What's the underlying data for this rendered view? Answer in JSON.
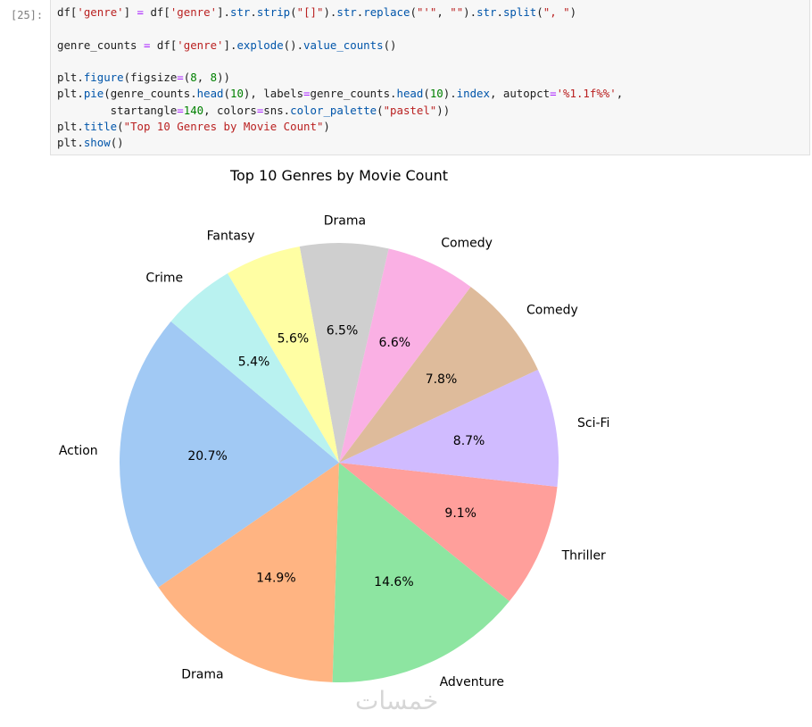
{
  "cell": {
    "prompt": "[25]:",
    "code_lines": [
      [
        [
          "df[",
          "n"
        ],
        [
          "'genre'",
          "s"
        ],
        [
          "] ",
          "n"
        ],
        [
          "=",
          "o"
        ],
        [
          " df[",
          "n"
        ],
        [
          "'genre'",
          "s"
        ],
        [
          "].",
          "n"
        ],
        [
          "str",
          "f"
        ],
        [
          ".",
          "n"
        ],
        [
          "strip",
          "f"
        ],
        [
          "(",
          "n"
        ],
        [
          "\"[]\"",
          "s"
        ],
        [
          ").",
          "n"
        ],
        [
          "str",
          "f"
        ],
        [
          ".",
          "n"
        ],
        [
          "replace",
          "f"
        ],
        [
          "(",
          "n"
        ],
        [
          "\"'\"",
          "s"
        ],
        [
          ", ",
          "n"
        ],
        [
          "\"\"",
          "s"
        ],
        [
          ").",
          "n"
        ],
        [
          "str",
          "f"
        ],
        [
          ".",
          "n"
        ],
        [
          "split",
          "f"
        ],
        [
          "(",
          "n"
        ],
        [
          "\", \"",
          "s"
        ],
        [
          ")",
          "n"
        ]
      ],
      [],
      [
        [
          "genre_counts ",
          "n"
        ],
        [
          "=",
          "o"
        ],
        [
          " df[",
          "n"
        ],
        [
          "'genre'",
          "s"
        ],
        [
          "].",
          "n"
        ],
        [
          "explode",
          "f"
        ],
        [
          "().",
          "n"
        ],
        [
          "value_counts",
          "f"
        ],
        [
          "()",
          "n"
        ]
      ],
      [],
      [
        [
          "plt.",
          "n"
        ],
        [
          "figure",
          "f"
        ],
        [
          "(figsize",
          "n"
        ],
        [
          "=",
          "o"
        ],
        [
          "(",
          "n"
        ],
        [
          "8",
          "d"
        ],
        [
          ", ",
          "n"
        ],
        [
          "8",
          "d"
        ],
        [
          "))",
          "n"
        ]
      ],
      [
        [
          "plt.",
          "n"
        ],
        [
          "pie",
          "f"
        ],
        [
          "(genre_counts.",
          "n"
        ],
        [
          "head",
          "f"
        ],
        [
          "(",
          "n"
        ],
        [
          "10",
          "d"
        ],
        [
          "), labels",
          "n"
        ],
        [
          "=",
          "o"
        ],
        [
          "genre_counts.",
          "n"
        ],
        [
          "head",
          "f"
        ],
        [
          "(",
          "n"
        ],
        [
          "10",
          "d"
        ],
        [
          ").",
          "n"
        ],
        [
          "index",
          "f"
        ],
        [
          ", autopct",
          "n"
        ],
        [
          "=",
          "o"
        ],
        [
          "'%1.1f%%'",
          "s"
        ],
        [
          ",",
          "n"
        ]
      ],
      [
        [
          "        startangle",
          "n"
        ],
        [
          "=",
          "o"
        ],
        [
          "140",
          "d"
        ],
        [
          ", colors",
          "n"
        ],
        [
          "=",
          "o"
        ],
        [
          "sns.",
          "n"
        ],
        [
          "color_palette",
          "f"
        ],
        [
          "(",
          "n"
        ],
        [
          "\"pastel\"",
          "s"
        ],
        [
          "))",
          "n"
        ]
      ],
      [
        [
          "plt.",
          "n"
        ],
        [
          "title",
          "f"
        ],
        [
          "(",
          "n"
        ],
        [
          "\"Top 10 Genres by Movie Count\"",
          "s"
        ],
        [
          ")",
          "n"
        ]
      ],
      [
        [
          "plt.",
          "n"
        ],
        [
          "show",
          "f"
        ],
        [
          "()",
          "n"
        ]
      ]
    ]
  },
  "chart_data": {
    "type": "pie",
    "title": "Top 10 Genres by Movie Count",
    "start_angle": 140,
    "categories": [
      "Action",
      "Drama",
      "Adventure",
      "Thriller",
      "Sci-Fi",
      "Comedy",
      "Comedy",
      "Drama",
      "Fantasy",
      "Crime"
    ],
    "values": [
      20.7,
      14.9,
      14.6,
      9.1,
      8.7,
      7.8,
      6.6,
      6.5,
      5.6,
      5.4
    ],
    "value_labels": [
      "20.7%",
      "14.9%",
      "14.6%",
      "9.1%",
      "8.7%",
      "7.8%",
      "6.6%",
      "6.5%",
      "5.6%",
      "5.4%"
    ],
    "colors": [
      "#a1c9f4",
      "#ffb482",
      "#8de5a1",
      "#ff9f9b",
      "#d0bbff",
      "#debb9b",
      "#fab0e4",
      "#cfcfcf",
      "#fffea3",
      "#b9f2f0"
    ]
  },
  "watermark": "خمسات"
}
